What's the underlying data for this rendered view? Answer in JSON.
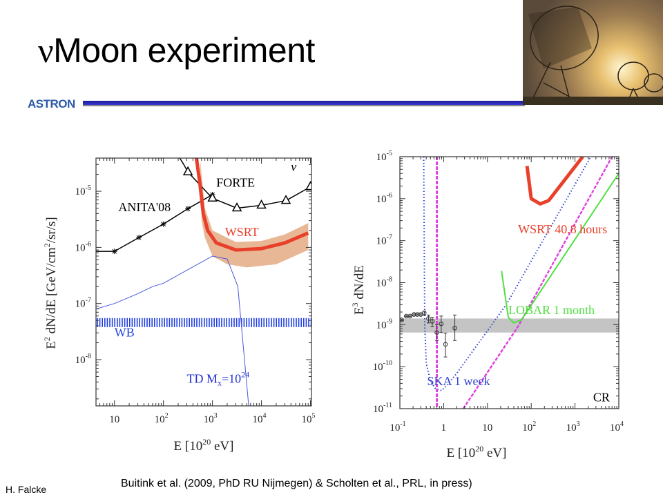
{
  "slide": {
    "title_symbol": "ν",
    "title_text": "Moon experiment",
    "logo_text": "ASTRON",
    "author": "H. Falcke",
    "reference": "Buitink et al. (2009,  PhD RU Nijmegen) & Scholten et al., PRL, in press)"
  },
  "chart_data": [
    {
      "type": "line",
      "id": "neutrino",
      "xscale": "log",
      "yscale": "log",
      "xlim": [
        4.2,
        105000
      ],
      "ylim": [
        1.5e-09,
        3.9e-05
      ],
      "xlabel": {
        "base": "E [10",
        "sup": "20",
        "rest": " eV]"
      },
      "ylabel": {
        "a": "E",
        "sup1": "2",
        "b": " dN/dE [GeV/cm",
        "sup2": "2",
        "c": "/sr/s]"
      },
      "xticks": [
        {
          "v": 10,
          "label": "10",
          "exp": ""
        },
        {
          "v": 100,
          "label": "10",
          "exp": "2"
        },
        {
          "v": 1000,
          "label": "10",
          "exp": "3"
        },
        {
          "v": 10000,
          "label": "10",
          "exp": "4"
        },
        {
          "v": 100000,
          "label": "10",
          "exp": "5"
        }
      ],
      "yticks": [
        {
          "v": 1e-08,
          "label": "10",
          "exp": "-8"
        },
        {
          "v": 1e-07,
          "label": "10",
          "exp": "-7"
        },
        {
          "v": 1e-06,
          "label": "10",
          "exp": "-6"
        },
        {
          "v": 1e-05,
          "label": "10",
          "exp": "-5"
        }
      ],
      "bands": [
        {
          "name": "WSRT uncertainty",
          "color": "#e8b896",
          "upper": [
            [
              560,
              3.9e-05
            ],
            [
              600,
              2e-05
            ],
            [
              700,
              5e-06
            ],
            [
              1000,
              2e-06
            ],
            [
              3000,
              1.25e-06
            ],
            [
              10000,
              1.3e-06
            ],
            [
              30000,
              1.7e-06
            ],
            [
              90000,
              2.7e-06
            ]
          ],
          "lower": [
            [
              90000,
              9e-07
            ],
            [
              20000,
              5e-07
            ],
            [
              5000,
              4.4e-07
            ],
            [
              2000,
              5e-07
            ],
            [
              1000,
              7e-07
            ],
            [
              700,
              1.5e-06
            ],
            [
              600,
              3e-06
            ],
            [
              560,
              3.9e-05
            ]
          ]
        }
      ],
      "hbands": [
        {
          "name": "WB",
          "color": "#2040e0",
          "y": [
            3.8e-08,
            5.5e-08
          ],
          "hatched": true
        }
      ],
      "series": [
        {
          "name": "ANITA'08",
          "color": "#000",
          "width": 1.5,
          "marker": "star",
          "points": [
            [
              4.2,
              8.5e-07
            ],
            [
              10,
              8.5e-07
            ],
            [
              31.6,
              1.5e-06
            ],
            [
              100,
              2.6e-06
            ],
            [
              316,
              4.9e-06
            ],
            [
              1000,
              8.7e-06
            ]
          ],
          "marked": [
            1,
            2,
            3,
            4,
            5
          ]
        },
        {
          "name": "FORTE",
          "color": "#000",
          "width": 1.5,
          "marker": "triangle",
          "points": [
            [
              215,
              3.9e-05
            ],
            [
              260,
              3e-05
            ],
            [
              316,
              2.2e-05
            ],
            [
              1000,
              7.5e-06
            ],
            [
              3162,
              5e-06
            ],
            [
              10000,
              5.6e-06
            ],
            [
              31623,
              6.8e-06
            ],
            [
              100000,
              1.2e-05
            ]
          ],
          "marked": [
            2,
            3,
            4,
            5,
            6,
            7
          ]
        },
        {
          "name": "TD Mx=10^24",
          "color": "#4a55e0",
          "width": 1,
          "points": [
            [
              4.2,
              8e-08
            ],
            [
              10,
              1e-07
            ],
            [
              30,
              1.5e-07
            ],
            [
              60,
              2e-07
            ],
            [
              100,
              2.3e-07
            ],
            [
              1000,
              7e-07
            ],
            [
              2000,
              6.2e-07
            ],
            [
              3300,
              2e-07
            ],
            [
              5500,
              1.5e-09
            ]
          ]
        },
        {
          "name": "WSRT",
          "color": "#e8402a",
          "width": 5,
          "points": [
            [
              470,
              3.9e-05
            ],
            [
              560,
              1.3e-05
            ],
            [
              650,
              4e-06
            ],
            [
              800,
              2e-06
            ],
            [
              1200,
              1.2e-06
            ],
            [
              3000,
              9e-07
            ],
            [
              10000,
              9.5e-07
            ],
            [
              30000,
              1.2e-06
            ],
            [
              90000,
              1.8e-06
            ]
          ]
        }
      ],
      "labels": [
        {
          "text": "ν",
          "color": "#000",
          "at": [
            40000,
            2.3e-05
          ],
          "italic": true
        },
        {
          "text": "FORTE",
          "color": "#000",
          "at": [
            1200,
            1.2e-05
          ]
        },
        {
          "text": "ANITA'08",
          "color": "#000",
          "at": [
            12,
            4.4e-06
          ]
        },
        {
          "text": "WSRT",
          "color": "#e8402a",
          "at": [
            1800,
            1.6e-06
          ]
        },
        {
          "text": "WB",
          "color": "#2040e0",
          "at": [
            10,
            2.6e-08
          ]
        },
        {
          "text": "TD M",
          "sub": "x",
          "tail": "=10",
          "sup": "24",
          "color": "#2030d0",
          "at": [
            300,
            3.9e-09
          ]
        }
      ]
    },
    {
      "type": "line",
      "id": "cosmic-ray",
      "xscale": "log",
      "yscale": "log",
      "xlim": [
        0.1,
        10000
      ],
      "ylim": [
        1e-11,
        1e-05
      ],
      "xlabel": {
        "base": "E [10",
        "sup": "20",
        "rest": " eV]"
      },
      "ylabel": {
        "a": "E",
        "sup1": "3",
        "b": " dN/dE",
        "sup2": "",
        "c": ""
      },
      "xticks": [
        {
          "v": 0.1,
          "label": "10",
          "exp": "-1"
        },
        {
          "v": 1,
          "label": "1",
          "exp": ""
        },
        {
          "v": 10,
          "label": "10",
          "exp": ""
        },
        {
          "v": 100,
          "label": "10",
          "exp": "2"
        },
        {
          "v": 1000,
          "label": "10",
          "exp": "3"
        },
        {
          "v": 10000,
          "label": "10",
          "exp": "4"
        }
      ],
      "yticks": [
        {
          "v": 1e-11,
          "label": "10",
          "exp": "-11"
        },
        {
          "v": 1e-10,
          "label": "10",
          "exp": "-10"
        },
        {
          "v": 1e-09,
          "label": "10",
          "exp": "-9"
        },
        {
          "v": 1e-08,
          "label": "10",
          "exp": "-8"
        },
        {
          "v": 1e-07,
          "label": "10",
          "exp": "-7"
        },
        {
          "v": 1e-06,
          "label": "10",
          "exp": "-6"
        },
        {
          "v": 1e-05,
          "label": "10",
          "exp": "-5"
        }
      ],
      "bands": [],
      "hbands": [
        {
          "name": "CR flux band",
          "color": "#c4c4c4",
          "y": [
            6.5e-10,
            1.4e-09
          ],
          "hatched": false
        }
      ],
      "series": [
        {
          "name": "SKA 1 week",
          "color": "#3040d0",
          "width": 2,
          "dash": "1.5 3",
          "points": [
            [
              0.35,
              1e-05
            ],
            [
              0.37,
              1e-09
            ],
            [
              0.4,
              1.2e-10
            ],
            [
              0.5,
              4.5e-11
            ],
            [
              0.65,
              3e-11
            ],
            [
              0.9,
              2.7e-11
            ],
            [
              1.3,
              4e-11
            ],
            [
              2,
              7e-11
            ],
            [
              27,
              3e-09
            ],
            [
              2300,
              1e-05
            ]
          ]
        },
        {
          "name": "magenta vertical",
          "color": "#e040e0",
          "width": 3,
          "dash": "5 2",
          "points": [
            [
              0.7,
              1e-05
            ],
            [
              0.7,
              1e-11
            ]
          ]
        },
        {
          "name": "magenta",
          "color": "#e040e0",
          "width": 2.5,
          "dash": "5 2",
          "points": [
            [
              2.8,
              1e-11
            ],
            [
              50,
              9e-10
            ],
            [
              7000,
              1e-05
            ]
          ]
        },
        {
          "name": "LOBAR 1 month",
          "color": "#50e040",
          "width": 2,
          "points": [
            [
              21,
              1.9e-08
            ],
            [
              30,
              1.5e-09
            ],
            [
              40,
              1.1e-09
            ],
            [
              60,
              1.3e-09
            ],
            [
              10000,
              4e-06
            ]
          ]
        },
        {
          "name": "WSRT 40.8 hours",
          "color": "#e8402a",
          "width": 5,
          "points": [
            [
              80,
              6e-06
            ],
            [
              100,
              1e-06
            ],
            [
              160,
              7.5e-07
            ],
            [
              250,
              9e-07
            ],
            [
              1500,
              1e-05
            ]
          ]
        }
      ],
      "errorbars": [
        [
          0.11,
          1.3e-09,
          1.25e-09,
          1.35e-09
        ],
        [
          0.14,
          1.6e-09,
          1.55e-09,
          1.65e-09
        ],
        [
          0.17,
          1.6e-09,
          1.55e-09,
          1.65e-09
        ],
        [
          0.21,
          1.75e-09,
          1.7e-09,
          1.8e-09
        ],
        [
          0.25,
          1.75e-09,
          1.7e-09,
          1.8e-09
        ],
        [
          0.3,
          1.75e-09,
          1.7e-09,
          1.8e-09
        ],
        [
          0.36,
          1.9e-09,
          1.7e-09,
          2.1e-09
        ],
        [
          0.45,
          1.4e-09,
          1.1e-09,
          1.7e-09
        ],
        [
          0.55,
          1.2e-09,
          9e-10,
          1.5e-09
        ],
        [
          0.7,
          6.5e-10,
          4.2e-10,
          1e-09
        ],
        [
          0.88,
          1.05e-09,
          6.5e-10,
          1.6e-09
        ],
        [
          1.1,
          3.4e-10,
          1.7e-10,
          6.3e-10
        ],
        [
          1.8,
          8.3e-10,
          4.2e-10,
          1.7e-09
        ]
      ],
      "labels": [
        {
          "text": "WSRT 40.8 hours",
          "color": "#e8402a",
          "at": [
            50,
            1.5e-07
          ]
        },
        {
          "text": "LOBAR 1 month",
          "color": "#50e040",
          "at": [
            30,
            1.8e-09
          ]
        },
        {
          "text": "SKA 1 week",
          "color": "#3040d0",
          "at": [
            0.42,
            3.6e-11
          ]
        },
        {
          "text": "CR",
          "color": "#000",
          "at": [
            2600,
            1.5e-11
          ]
        }
      ]
    }
  ]
}
